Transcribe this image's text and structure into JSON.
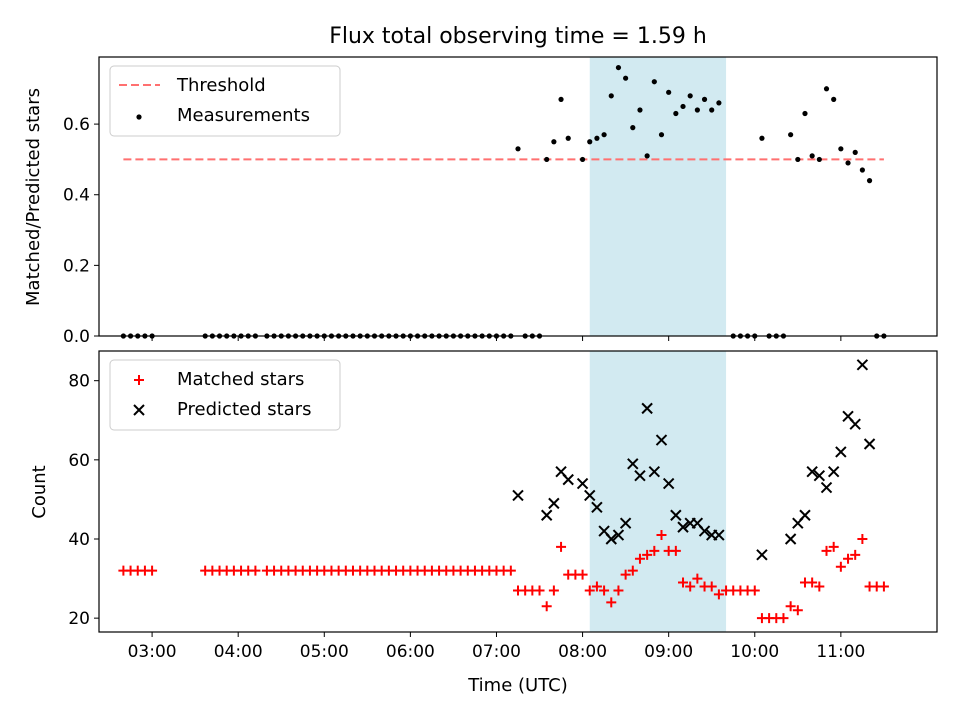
{
  "figure": {
    "title": "Flux total observing time = 1.59 h",
    "xlabel": "Time (UTC)",
    "x_ticks": [
      "03:00",
      "04:00",
      "05:00",
      "06:00",
      "07:00",
      "08:00",
      "09:00",
      "10:00",
      "11:00"
    ],
    "xlim": [
      "02:23",
      "12:07"
    ],
    "shaded_window": [
      "08:05",
      "09:40"
    ],
    "shade_color": "#add8e6"
  },
  "chart_data": [
    {
      "type": "scatter",
      "ylabel": "Matched/Predicted stars",
      "ylim": [
        0,
        0.79
      ],
      "y_ticks": [
        "0.0",
        "0.2",
        "0.4",
        "0.6"
      ],
      "legend_position": "top-left",
      "threshold": {
        "name": "Threshold",
        "value": 0.5,
        "x_range": [
          "02:40",
          "11:30"
        ],
        "color": "#ff7070"
      },
      "series": [
        {
          "name": "Measurements",
          "color": "#000000",
          "points": [
            [
              "02:40",
              0
            ],
            [
              "02:45",
              0
            ],
            [
              "02:50",
              0
            ],
            [
              "02:55",
              0
            ],
            [
              "03:00",
              0
            ],
            [
              "03:37",
              0
            ],
            [
              "03:42",
              0
            ],
            [
              "03:47",
              0
            ],
            [
              "03:52",
              0
            ],
            [
              "03:57",
              0
            ],
            [
              "04:02",
              0
            ],
            [
              "04:07",
              0
            ],
            [
              "04:12",
              0
            ],
            [
              "04:20",
              0
            ],
            [
              "04:25",
              0
            ],
            [
              "04:30",
              0
            ],
            [
              "04:35",
              0
            ],
            [
              "04:40",
              0
            ],
            [
              "04:45",
              0
            ],
            [
              "04:50",
              0
            ],
            [
              "04:55",
              0
            ],
            [
              "05:00",
              0
            ],
            [
              "05:05",
              0
            ],
            [
              "05:10",
              0
            ],
            [
              "05:15",
              0
            ],
            [
              "05:20",
              0
            ],
            [
              "05:25",
              0
            ],
            [
              "05:30",
              0
            ],
            [
              "05:35",
              0
            ],
            [
              "05:40",
              0
            ],
            [
              "05:45",
              0
            ],
            [
              "05:50",
              0
            ],
            [
              "05:55",
              0
            ],
            [
              "06:00",
              0
            ],
            [
              "06:05",
              0
            ],
            [
              "06:10",
              0
            ],
            [
              "06:15",
              0
            ],
            [
              "06:20",
              0
            ],
            [
              "06:25",
              0
            ],
            [
              "06:30",
              0
            ],
            [
              "06:35",
              0
            ],
            [
              "06:40",
              0
            ],
            [
              "06:45",
              0
            ],
            [
              "06:50",
              0
            ],
            [
              "06:55",
              0
            ],
            [
              "07:00",
              0
            ],
            [
              "07:05",
              0
            ],
            [
              "07:10",
              0
            ],
            [
              "07:20",
              0
            ],
            [
              "07:25",
              0
            ],
            [
              "07:30",
              0
            ],
            [
              "07:15",
              0.53
            ],
            [
              "07:35",
              0.5
            ],
            [
              "07:40",
              0.55
            ],
            [
              "07:45",
              0.67
            ],
            [
              "07:50",
              0.56
            ],
            [
              "08:00",
              0.5
            ],
            [
              "08:05",
              0.55
            ],
            [
              "08:10",
              0.56
            ],
            [
              "08:15",
              0.57
            ],
            [
              "08:20",
              0.68
            ],
            [
              "08:25",
              0.76
            ],
            [
              "08:30",
              0.73
            ],
            [
              "08:35",
              0.59
            ],
            [
              "08:40",
              0.64
            ],
            [
              "08:45",
              0.51
            ],
            [
              "08:50",
              0.72
            ],
            [
              "08:55",
              0.57
            ],
            [
              "09:00",
              0.69
            ],
            [
              "09:05",
              0.63
            ],
            [
              "09:10",
              0.65
            ],
            [
              "09:15",
              0.68
            ],
            [
              "09:20",
              0.64
            ],
            [
              "09:25",
              0.67
            ],
            [
              "09:30",
              0.64
            ],
            [
              "09:35",
              0.66
            ],
            [
              "09:45",
              0
            ],
            [
              "09:50",
              0
            ],
            [
              "09:55",
              0
            ],
            [
              "10:00",
              0
            ],
            [
              "10:10",
              0
            ],
            [
              "10:15",
              0
            ],
            [
              "10:20",
              0
            ],
            [
              "10:05",
              0.56
            ],
            [
              "10:25",
              0.57
            ],
            [
              "10:30",
              0.5
            ],
            [
              "10:35",
              0.63
            ],
            [
              "10:40",
              0.51
            ],
            [
              "10:45",
              0.5
            ],
            [
              "10:50",
              0.7
            ],
            [
              "10:55",
              0.67
            ],
            [
              "11:00",
              0.53
            ],
            [
              "11:05",
              0.49
            ],
            [
              "11:10",
              0.52
            ],
            [
              "11:15",
              0.47
            ],
            [
              "11:20",
              0.44
            ],
            [
              "11:25",
              0
            ],
            [
              "11:30",
              0
            ]
          ]
        }
      ]
    },
    {
      "type": "scatter",
      "ylabel": "Count",
      "ylim": [
        16.5,
        87.5
      ],
      "y_ticks": [
        "20",
        "40",
        "60",
        "80"
      ],
      "legend_position": "top-left",
      "series": [
        {
          "name": "Matched stars",
          "color": "#ff0000",
          "marker": "plus",
          "points": [
            [
              "02:40",
              32
            ],
            [
              "02:45",
              32
            ],
            [
              "02:50",
              32
            ],
            [
              "02:55",
              32
            ],
            [
              "03:00",
              32
            ],
            [
              "03:37",
              32
            ],
            [
              "03:42",
              32
            ],
            [
              "03:47",
              32
            ],
            [
              "03:52",
              32
            ],
            [
              "03:57",
              32
            ],
            [
              "04:02",
              32
            ],
            [
              "04:07",
              32
            ],
            [
              "04:12",
              32
            ],
            [
              "04:20",
              32
            ],
            [
              "04:25",
              32
            ],
            [
              "04:30",
              32
            ],
            [
              "04:35",
              32
            ],
            [
              "04:40",
              32
            ],
            [
              "04:45",
              32
            ],
            [
              "04:50",
              32
            ],
            [
              "04:55",
              32
            ],
            [
              "05:00",
              32
            ],
            [
              "05:05",
              32
            ],
            [
              "05:10",
              32
            ],
            [
              "05:15",
              32
            ],
            [
              "05:20",
              32
            ],
            [
              "05:25",
              32
            ],
            [
              "05:30",
              32
            ],
            [
              "05:35",
              32
            ],
            [
              "05:40",
              32
            ],
            [
              "05:45",
              32
            ],
            [
              "05:50",
              32
            ],
            [
              "05:55",
              32
            ],
            [
              "06:00",
              32
            ],
            [
              "06:05",
              32
            ],
            [
              "06:10",
              32
            ],
            [
              "06:15",
              32
            ],
            [
              "06:20",
              32
            ],
            [
              "06:25",
              32
            ],
            [
              "06:30",
              32
            ],
            [
              "06:35",
              32
            ],
            [
              "06:40",
              32
            ],
            [
              "06:45",
              32
            ],
            [
              "06:50",
              32
            ],
            [
              "06:55",
              32
            ],
            [
              "07:00",
              32
            ],
            [
              "07:05",
              32
            ],
            [
              "07:10",
              32
            ],
            [
              "07:15",
              27
            ],
            [
              "07:20",
              27
            ],
            [
              "07:25",
              27
            ],
            [
              "07:30",
              27
            ],
            [
              "07:35",
              23
            ],
            [
              "07:40",
              27
            ],
            [
              "07:45",
              38
            ],
            [
              "07:50",
              31
            ],
            [
              "07:55",
              31
            ],
            [
              "08:00",
              31
            ],
            [
              "08:05",
              27
            ],
            [
              "08:10",
              28
            ],
            [
              "08:15",
              27
            ],
            [
              "08:20",
              24
            ],
            [
              "08:25",
              27
            ],
            [
              "08:30",
              31
            ],
            [
              "08:35",
              32
            ],
            [
              "08:40",
              35
            ],
            [
              "08:45",
              36
            ],
            [
              "08:50",
              37
            ],
            [
              "08:55",
              41
            ],
            [
              "09:00",
              37
            ],
            [
              "09:05",
              37
            ],
            [
              "09:10",
              29
            ],
            [
              "09:15",
              28
            ],
            [
              "09:20",
              30
            ],
            [
              "09:25",
              28
            ],
            [
              "09:30",
              28
            ],
            [
              "09:35",
              26
            ],
            [
              "09:40",
              27
            ],
            [
              "09:45",
              27
            ],
            [
              "09:50",
              27
            ],
            [
              "09:55",
              27
            ],
            [
              "10:00",
              27
            ],
            [
              "10:05",
              20
            ],
            [
              "10:10",
              20
            ],
            [
              "10:15",
              20
            ],
            [
              "10:20",
              20
            ],
            [
              "10:25",
              23
            ],
            [
              "10:30",
              22
            ],
            [
              "10:35",
              29
            ],
            [
              "10:40",
              29
            ],
            [
              "10:45",
              28
            ],
            [
              "10:50",
              37
            ],
            [
              "10:55",
              38
            ],
            [
              "11:00",
              33
            ],
            [
              "11:05",
              35
            ],
            [
              "11:10",
              36
            ],
            [
              "11:15",
              40
            ],
            [
              "11:20",
              28
            ],
            [
              "11:25",
              28
            ],
            [
              "11:30",
              28
            ]
          ]
        },
        {
          "name": "Predicted stars",
          "color": "#000000",
          "marker": "x",
          "points": [
            [
              "07:15",
              51
            ],
            [
              "07:35",
              46
            ],
            [
              "07:40",
              49
            ],
            [
              "07:45",
              57
            ],
            [
              "07:50",
              55
            ],
            [
              "08:00",
              54
            ],
            [
              "08:05",
              51
            ],
            [
              "08:10",
              48
            ],
            [
              "08:15",
              42
            ],
            [
              "08:20",
              40
            ],
            [
              "08:25",
              41
            ],
            [
              "08:30",
              44
            ],
            [
              "08:35",
              59
            ],
            [
              "08:40",
              56
            ],
            [
              "08:45",
              73
            ],
            [
              "08:50",
              57
            ],
            [
              "08:55",
              65
            ],
            [
              "09:00",
              54
            ],
            [
              "09:05",
              46
            ],
            [
              "09:10",
              43
            ],
            [
              "09:15",
              44
            ],
            [
              "09:20",
              44
            ],
            [
              "09:25",
              42
            ],
            [
              "09:30",
              41
            ],
            [
              "09:35",
              41
            ],
            [
              "10:05",
              36
            ],
            [
              "10:25",
              40
            ],
            [
              "10:30",
              44
            ],
            [
              "10:35",
              46
            ],
            [
              "10:40",
              57
            ],
            [
              "10:45",
              56
            ],
            [
              "10:50",
              53
            ],
            [
              "10:55",
              57
            ],
            [
              "11:00",
              62
            ],
            [
              "11:05",
              71
            ],
            [
              "11:10",
              69
            ],
            [
              "11:15",
              84
            ],
            [
              "11:20",
              64
            ]
          ]
        }
      ]
    }
  ]
}
